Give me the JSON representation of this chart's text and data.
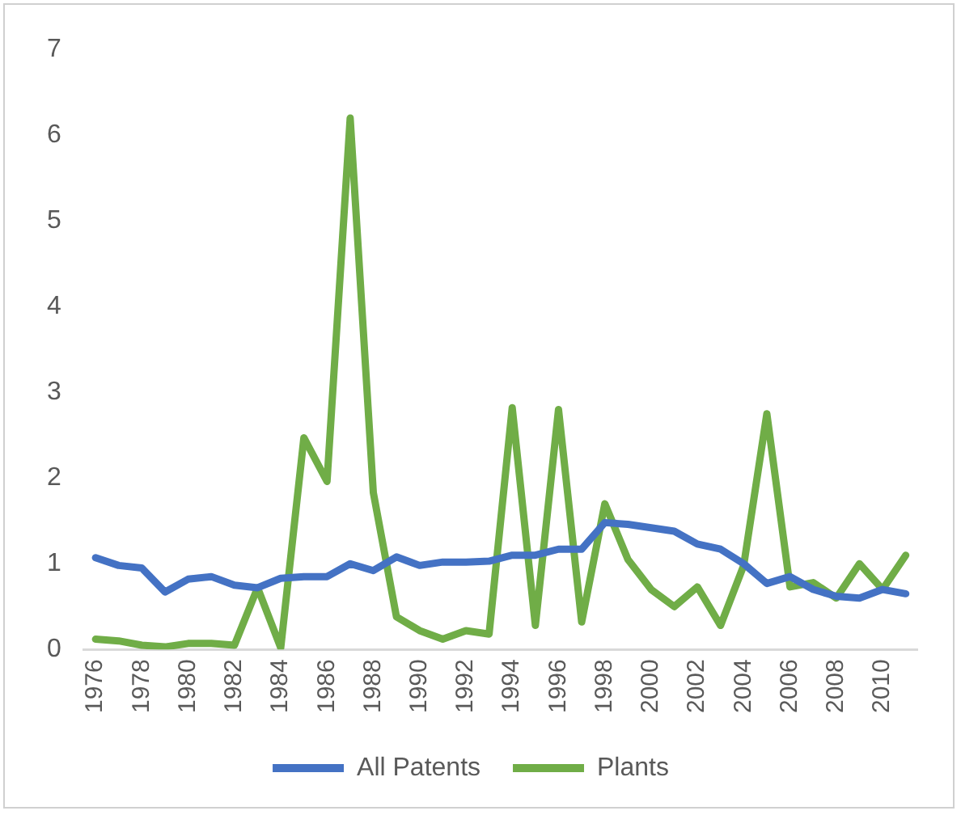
{
  "chart_data": {
    "type": "line",
    "categories": [
      "1976",
      null,
      "1978",
      null,
      "1980",
      null,
      "1982",
      null,
      "1984",
      null,
      "1986",
      null,
      "1988",
      null,
      "1990",
      null,
      "1992",
      null,
      "1994",
      null,
      "1996",
      null,
      "1998",
      null,
      "2000",
      null,
      "2002",
      null,
      "2004",
      null,
      "2006",
      null,
      "2008",
      null,
      "2010",
      null
    ],
    "series": [
      {
        "name": "All Patents",
        "color": "#4472c4",
        "values": [
          1.07,
          0.98,
          0.95,
          0.67,
          0.82,
          0.85,
          0.75,
          0.72,
          0.83,
          0.85,
          0.85,
          1.0,
          0.92,
          1.08,
          0.98,
          1.02,
          1.02,
          1.03,
          1.1,
          1.1,
          1.17,
          1.17,
          1.48,
          1.46,
          1.42,
          1.38,
          1.23,
          1.17,
          1.0,
          0.77,
          0.85,
          0.7,
          0.62,
          0.6,
          0.7,
          0.65
        ]
      },
      {
        "name": "Plants",
        "color": "#70ad47",
        "values": [
          0.12,
          0.1,
          0.05,
          0.03,
          0.07,
          0.07,
          0.05,
          0.72,
          0.02,
          2.47,
          1.96,
          6.2,
          1.83,
          0.38,
          0.22,
          0.12,
          0.22,
          0.18,
          2.82,
          0.28,
          2.8,
          0.32,
          1.7,
          1.05,
          0.7,
          0.5,
          0.73,
          0.28,
          0.98,
          2.75,
          0.73,
          0.78,
          0.6,
          1.0,
          0.7,
          1.1
        ]
      }
    ],
    "ylim": [
      0,
      7
    ],
    "yticks": [
      0,
      1,
      2,
      3,
      4,
      5,
      6,
      7
    ],
    "legend": "bottom",
    "marker": "none",
    "line_style": "solid"
  }
}
